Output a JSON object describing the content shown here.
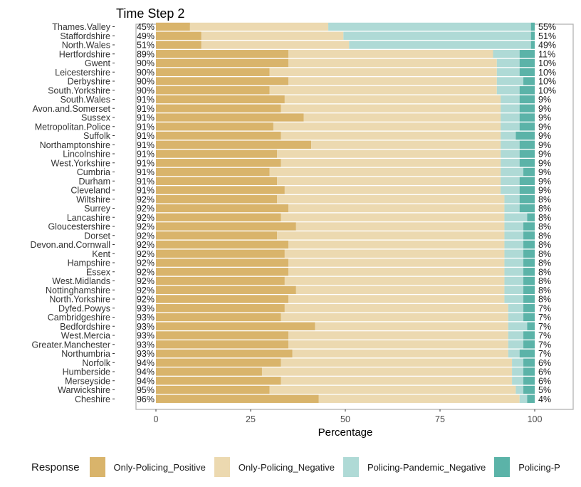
{
  "chart_data": {
    "type": "bar",
    "orientation": "horizontal",
    "stacked": true,
    "title": "Time Step 2",
    "xlabel": "Percentage",
    "ylabel": "",
    "xlim": [
      0,
      100
    ],
    "xticks": [
      0,
      25,
      50,
      75,
      100
    ],
    "grid": false,
    "legend": {
      "title": "Response",
      "position": "bottom",
      "entries": [
        "Only-Policing_Positive",
        "Only-Policing_Negative",
        "Policing-Pandemic_Negative",
        "Policing-P"
      ]
    },
    "colors": {
      "Only-Policing_Positive": "#d9b46b",
      "Only-Policing_Negative": "#ecd9b0",
      "Policing-Pandemic_Negative": "#afdad6",
      "Policing-Pandemic_Positive": "#5bb3a8"
    },
    "categories": [
      "Thames.Valley",
      "Staffordshire",
      "North.Wales",
      "Hertfordshire",
      "Gwent",
      "Leicestershire",
      "Derbyshire",
      "South.Yorkshire",
      "South.Wales",
      "Avon.and.Somerset",
      "Sussex",
      "Metropolitan.Police",
      "Suffolk",
      "Northamptonshire",
      "Lincolnshire",
      "West.Yorkshire",
      "Cumbria",
      "Durham",
      "Cleveland",
      "Wiltshire",
      "Surrey",
      "Lancashire",
      "Gloucestershire",
      "Dorset",
      "Devon.and.Cornwall",
      "Kent",
      "Hampshire",
      "Essex",
      "West.Midlands",
      "Nottinghamshire",
      "North.Yorkshire",
      "Dyfed.Powys",
      "Cambridgeshire",
      "Bedfordshire",
      "West.Mercia",
      "Greater.Manchester",
      "Northumbria",
      "Norfolk",
      "Humberside",
      "Merseyside",
      "Warwickshire",
      "Cheshire"
    ],
    "left_labels": [
      "45%",
      "49%",
      "51%",
      "89%",
      "90%",
      "90%",
      "90%",
      "90%",
      "91%",
      "91%",
      "91%",
      "91%",
      "91%",
      "91%",
      "91%",
      "91%",
      "91%",
      "91%",
      "91%",
      "92%",
      "92%",
      "92%",
      "92%",
      "92%",
      "92%",
      "92%",
      "92%",
      "92%",
      "92%",
      "92%",
      "92%",
      "93%",
      "93%",
      "93%",
      "93%",
      "93%",
      "93%",
      "94%",
      "94%",
      "94%",
      "95%",
      "96%"
    ],
    "right_labels": [
      "55%",
      "51%",
      "49%",
      "11%",
      "10%",
      "10%",
      "10%",
      "10%",
      "9%",
      "9%",
      "9%",
      "9%",
      "9%",
      "9%",
      "9%",
      "9%",
      "9%",
      "9%",
      "9%",
      "8%",
      "8%",
      "8%",
      "8%",
      "8%",
      "8%",
      "8%",
      "8%",
      "8%",
      "8%",
      "8%",
      "8%",
      "7%",
      "7%",
      "7%",
      "7%",
      "7%",
      "7%",
      "6%",
      "6%",
      "6%",
      "5%",
      "4%"
    ],
    "series": [
      {
        "name": "Only-Policing_Positive",
        "values": [
          9,
          12,
          12,
          35,
          35,
          30,
          35,
          30,
          34,
          33,
          39,
          31,
          33,
          41,
          32,
          33,
          30,
          32,
          34,
          32,
          35,
          33,
          37,
          32,
          35,
          34,
          35,
          35,
          34,
          37,
          35,
          34,
          33,
          42,
          35,
          35,
          36,
          33,
          28,
          33,
          30,
          43
        ]
      },
      {
        "name": "Only-Policing_Negative",
        "values": [
          36.5,
          37.5,
          39,
          54,
          55,
          60,
          55,
          60,
          57,
          58,
          52,
          60,
          58,
          50,
          59,
          58,
          61,
          59,
          57,
          60,
          57,
          59,
          55,
          60,
          57,
          58,
          57,
          57,
          58,
          55,
          57,
          59,
          60,
          51,
          58,
          58,
          57,
          61,
          66,
          61,
          65,
          53
        ]
      },
      {
        "name": "Policing-Pandemic_Negative",
        "values": [
          53.5,
          49.5,
          48,
          7,
          6,
          6,
          7,
          6,
          5,
          5,
          5,
          5,
          4,
          5,
          5,
          5,
          6,
          5,
          5,
          4,
          4,
          6,
          5,
          5,
          5,
          5,
          5,
          5,
          5,
          5,
          5,
          4,
          4,
          5,
          4,
          4,
          3,
          3,
          3,
          3,
          2,
          2
        ]
      },
      {
        "name": "Policing-P",
        "values": [
          1,
          1,
          1,
          4,
          4,
          4,
          3,
          4,
          4,
          4,
          4,
          4,
          5,
          4,
          4,
          4,
          3,
          4,
          4,
          4,
          4,
          2,
          3,
          3,
          3,
          3,
          3,
          3,
          3,
          3,
          3,
          3,
          3,
          2,
          3,
          3,
          4,
          3,
          3,
          3,
          3,
          2
        ]
      }
    ]
  }
}
